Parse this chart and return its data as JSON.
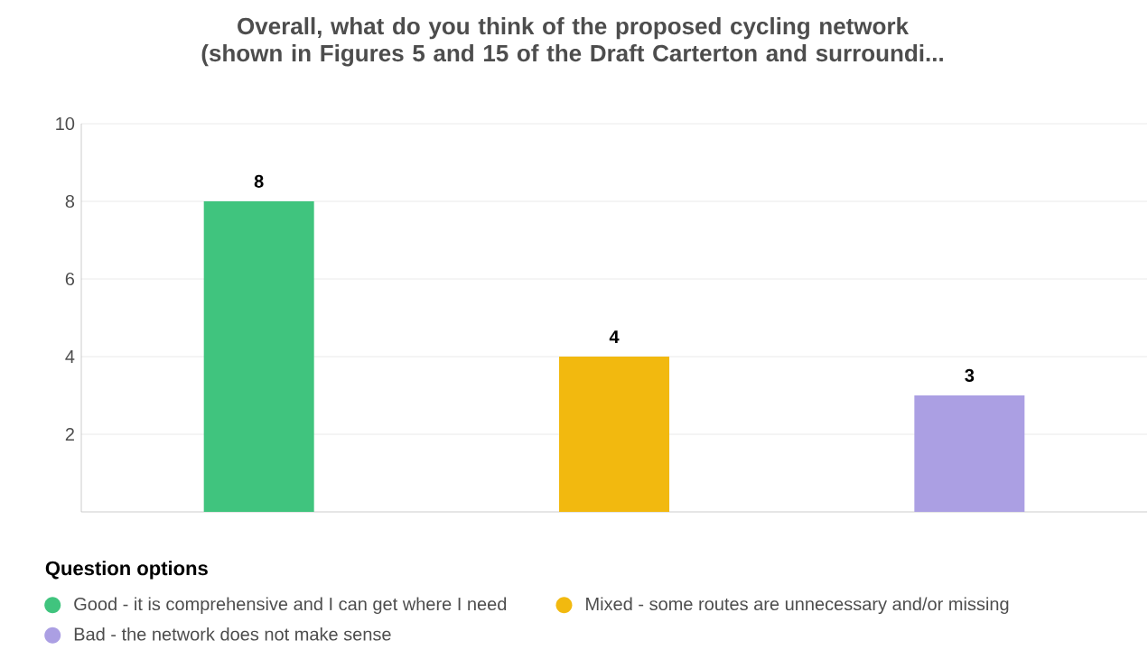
{
  "chart_data": {
    "type": "bar",
    "title": "Overall, what do you think of the proposed cycling network (shown in Figures 5 and 15 of the  Draft Carterton and surroundi...",
    "categories": [
      null,
      null,
      null
    ],
    "series": [
      {
        "name": "Good - it is comprehensive and I can get where I need",
        "color": "#40c47e",
        "values": [
          8,
          null,
          null
        ]
      },
      {
        "name": "Mixed - some routes are unnecessary and/or missing",
        "color": "#f2b90f",
        "values": [
          null,
          4,
          null
        ]
      },
      {
        "name": "Bad - the network does not make sense",
        "color": "#ab9fe3",
        "values": [
          null,
          null,
          3
        ]
      }
    ],
    "ylim": [
      0,
      10
    ],
    "yticks": [
      2,
      4,
      6,
      8,
      10
    ],
    "grid": "y",
    "legend": "bottom",
    "legend_title": "Question options",
    "data_labels": true
  }
}
